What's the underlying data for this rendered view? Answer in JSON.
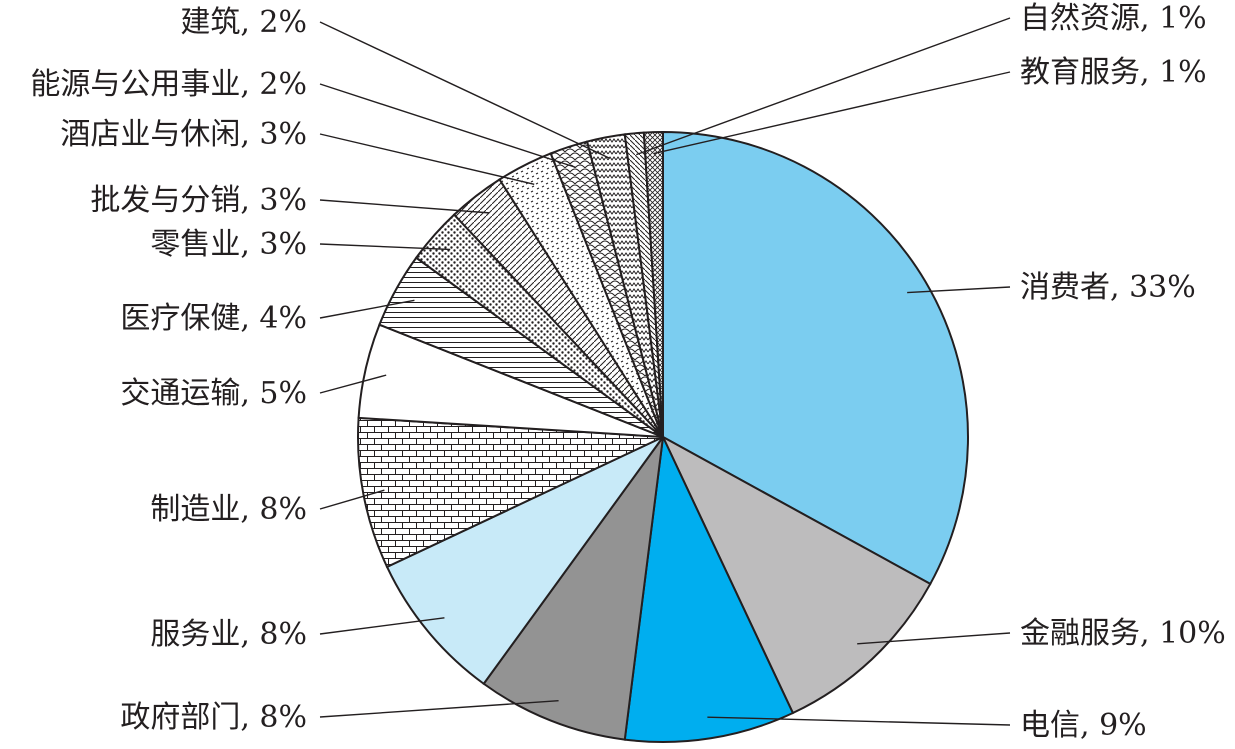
{
  "chart_data": {
    "type": "pie",
    "title": "",
    "slices": [
      {
        "label": "消费者",
        "value": 33,
        "text": "消费者, 33%",
        "fill": "#7bcdf0"
      },
      {
        "label": "金融服务",
        "value": 10,
        "text": "金融服务, 10%",
        "fill": "#bdbcbd"
      },
      {
        "label": "电信",
        "value": 9,
        "text": "电信, 9%",
        "fill": "#00aeef"
      },
      {
        "label": "政府部门",
        "value": 8,
        "text": "政府部门, 8%",
        "fill": "#939393"
      },
      {
        "label": "服务业",
        "value": 8,
        "text": "服务业, 8%",
        "fill": "#c8eaf8"
      },
      {
        "label": "制造业",
        "value": 8,
        "text": "制造业, 8%",
        "fill": "url(#p-brick)"
      },
      {
        "label": "交通运输",
        "value": 5,
        "text": "交通运输, 5%",
        "fill": "#ffffff"
      },
      {
        "label": "医疗保健",
        "value": 4,
        "text": "医疗保健, 4%",
        "fill": "url(#p-hlines)"
      },
      {
        "label": "零售业",
        "value": 3,
        "text": "零售业, 3%",
        "fill": "url(#p-dots)"
      },
      {
        "label": "批发与分销",
        "value": 3,
        "text": "批发与分销, 3%",
        "fill": "url(#p-diag)"
      },
      {
        "label": "酒店业与休闲",
        "value": 3,
        "text": "酒店业与休闲, 3%",
        "fill": "url(#p-confetti)"
      },
      {
        "label": "能源与公用事业",
        "value": 2,
        "text": "能源与公用事业, 2%",
        "fill": "url(#p-scales)"
      },
      {
        "label": "建筑",
        "value": 2,
        "text": "建筑, 2%",
        "fill": "url(#p-zigzag)"
      },
      {
        "label": "自然资源",
        "value": 1,
        "text": "自然资源, 1%",
        "fill": "url(#p-diag2)"
      },
      {
        "label": "教育服务",
        "value": 1,
        "text": "教育服务, 1%",
        "fill": "url(#p-cross)"
      }
    ]
  }
}
